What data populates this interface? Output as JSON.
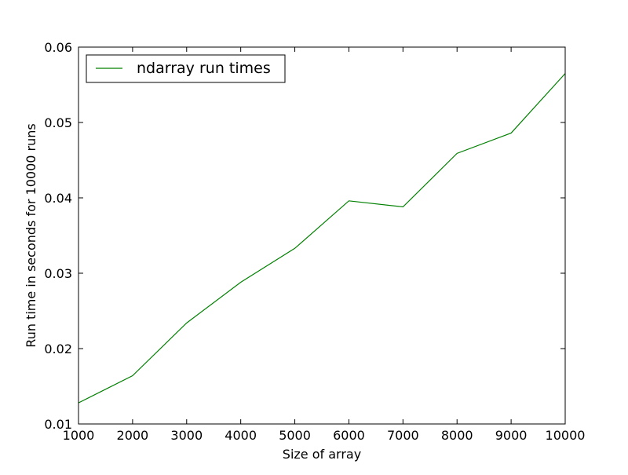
{
  "chart_data": {
    "type": "line",
    "title": "",
    "xlabel": "Size of array",
    "ylabel": "Run time in seconds for 10000 runs",
    "xlim": [
      1000,
      10000
    ],
    "ylim": [
      0.01,
      0.06
    ],
    "x_ticks": [
      1000,
      2000,
      3000,
      4000,
      5000,
      6000,
      7000,
      8000,
      9000,
      10000
    ],
    "x_tick_labels": [
      "1000",
      "2000",
      "3000",
      "4000",
      "5000",
      "6000",
      "7000",
      "8000",
      "9000",
      "10000"
    ],
    "y_ticks": [
      0.01,
      0.02,
      0.03,
      0.04,
      0.05,
      0.06
    ],
    "y_tick_labels": [
      "0.01",
      "0.02",
      "0.03",
      "0.04",
      "0.05",
      "0.06"
    ],
    "grid": false,
    "legend_position": "top-left",
    "series": [
      {
        "name": "ndarray run times",
        "color": "#008000",
        "x": [
          1000,
          2000,
          3000,
          4000,
          5000,
          6000,
          7000,
          8000,
          9000,
          10000
        ],
        "y": [
          0.0128,
          0.0164,
          0.0234,
          0.0288,
          0.0333,
          0.0396,
          0.0388,
          0.0459,
          0.0486,
          0.0565
        ]
      }
    ]
  }
}
